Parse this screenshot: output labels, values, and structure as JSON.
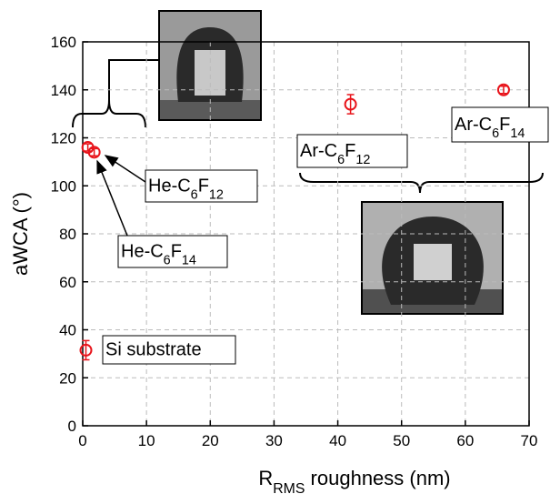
{
  "chart_data": {
    "type": "scatter",
    "xlabel": [
      "R",
      "RMS",
      " roughness (nm)"
    ],
    "ylabel": "aWCA (°)",
    "xlim": [
      0,
      70
    ],
    "xticks": [
      0,
      10,
      20,
      30,
      40,
      50,
      60,
      70
    ],
    "ylim": [
      0,
      160
    ],
    "yticks": [
      0,
      20,
      40,
      60,
      80,
      100,
      120,
      140,
      160
    ],
    "grid": true,
    "series": [
      {
        "color": "#e8141b",
        "x": [
          0.5,
          0.8,
          1.8,
          42,
          66
        ],
        "values": [
          31.5,
          116,
          114,
          134,
          140
        ],
        "errors": [
          4,
          1.5,
          1.5,
          4,
          1.5
        ]
      }
    ],
    "annotations": [
      [
        "Si substrate"
      ],
      [
        "He-C",
        "6",
        "F",
        "14"
      ],
      [
        "He-C",
        "6",
        "F",
        "12"
      ],
      [
        "Ar-C",
        "6",
        "F",
        "12"
      ],
      [
        "Ar-C",
        "6",
        "F",
        "14"
      ]
    ]
  }
}
